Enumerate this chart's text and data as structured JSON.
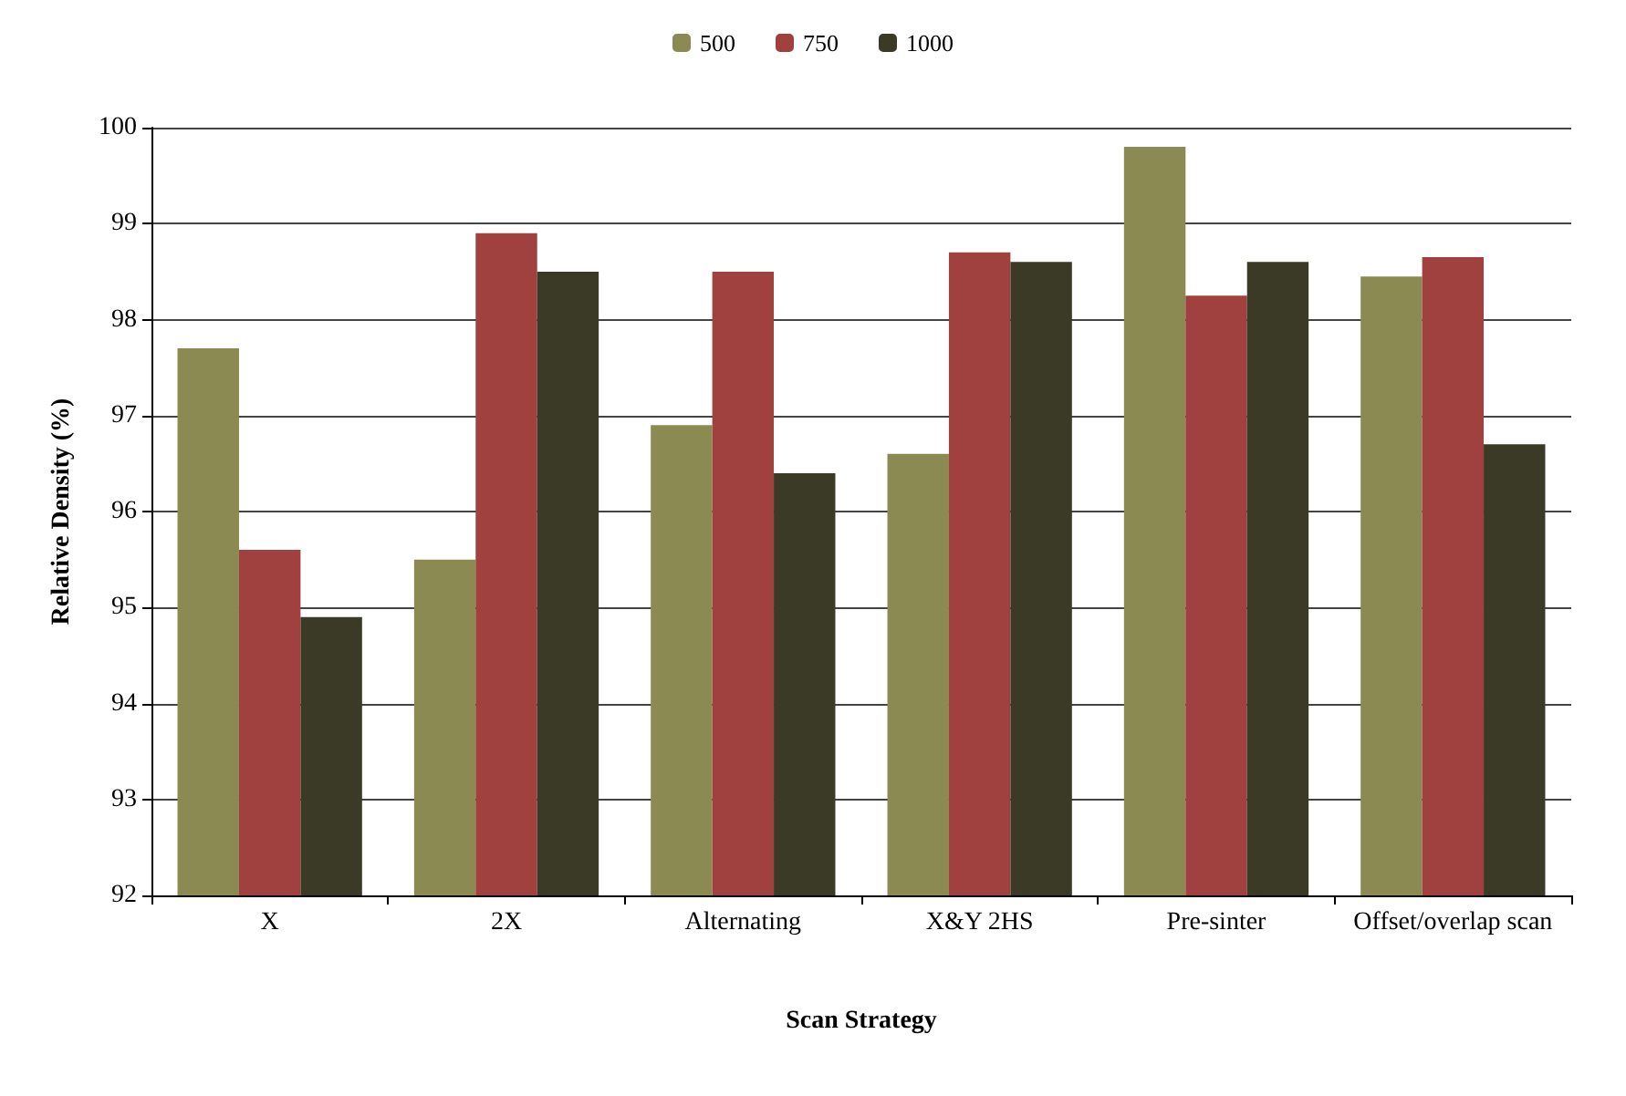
{
  "chart_data": {
    "type": "bar",
    "xlabel": "Scan Strategy",
    "ylabel": "Relative Density (%)",
    "categories": [
      "X",
      "2X",
      "Alternating",
      "X&Y 2HS",
      "Pre-sinter",
      "Offset/overlap scan"
    ],
    "series": [
      {
        "name": "500",
        "color": "#8b8a52",
        "values": [
          97.7,
          95.5,
          96.9,
          96.6,
          99.8,
          98.45
        ]
      },
      {
        "name": "750",
        "color": "#a0403f",
        "values": [
          95.6,
          98.9,
          98.5,
          98.7,
          98.25,
          98.65
        ]
      },
      {
        "name": "1000",
        "color": "#3a3a26",
        "values": [
          94.9,
          98.5,
          96.4,
          98.6,
          98.6,
          96.7
        ]
      }
    ],
    "ylim": [
      92,
      100
    ],
    "yticks": [
      92,
      93,
      94,
      95,
      96,
      97,
      98,
      99,
      100
    ],
    "grid": "y",
    "legend": "top"
  }
}
